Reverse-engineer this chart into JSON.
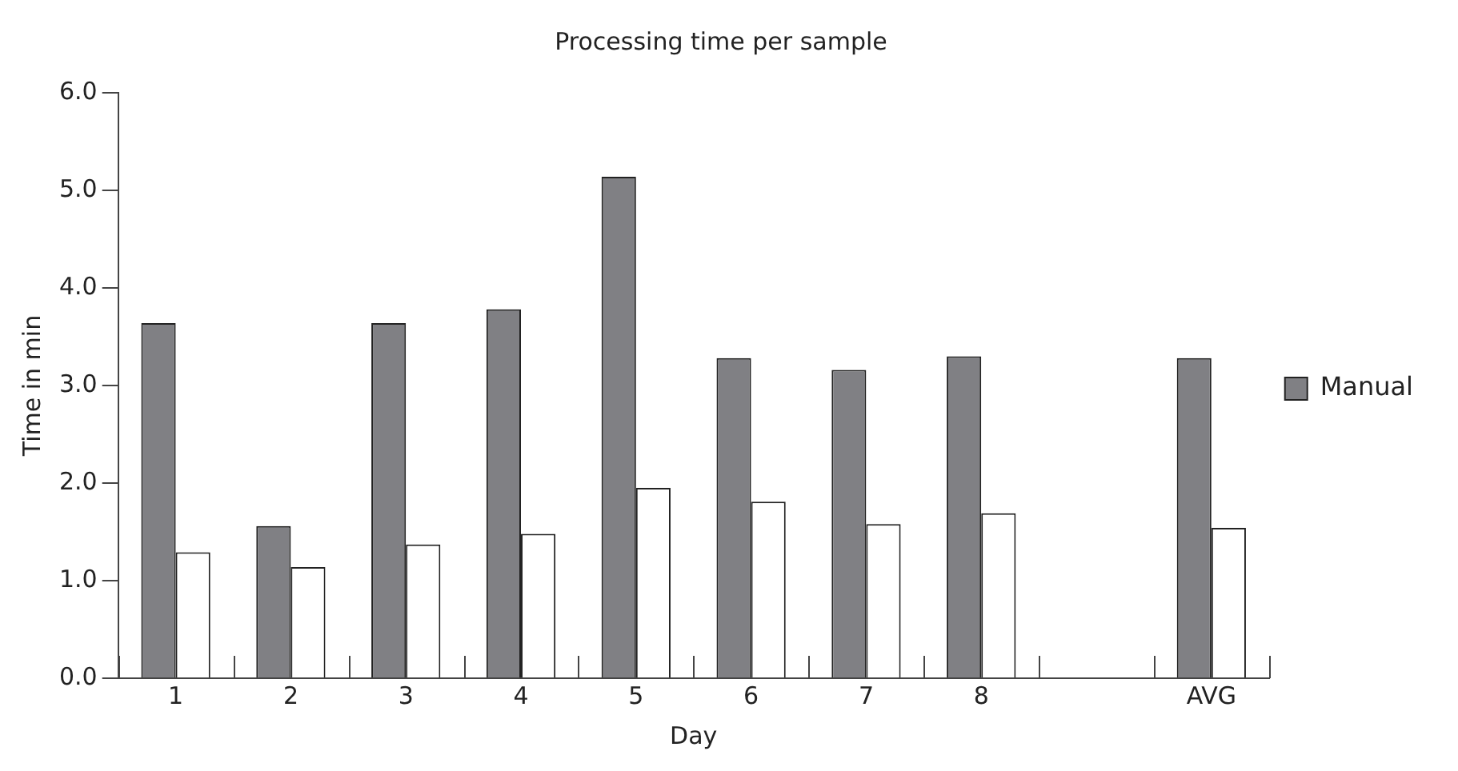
{
  "chart_data": {
    "type": "bar",
    "title": "Processing time per sample",
    "xlabel": "Day",
    "ylabel": "Time in min",
    "categories": [
      "1",
      "2",
      "3",
      "4",
      "5",
      "6",
      "7",
      "8",
      null,
      "AVG"
    ],
    "series": [
      {
        "name": "Manual",
        "color": "#808084",
        "values": [
          3.64,
          1.56,
          3.64,
          3.78,
          5.14,
          3.28,
          3.16,
          3.3,
          null,
          3.28
        ]
      },
      {
        "color": "#ffffff",
        "values": [
          1.29,
          1.14,
          1.37,
          1.48,
          1.95,
          1.81,
          1.58,
          1.69,
          null,
          1.54
        ]
      }
    ],
    "ylim": [
      0,
      6
    ],
    "yticks": [
      {
        "value": 0,
        "label": "0.0"
      },
      {
        "value": 1,
        "label": "1.0"
      },
      {
        "value": 2,
        "label": "2.0"
      },
      {
        "value": 3,
        "label": "3.0"
      },
      {
        "value": 4,
        "label": "4.0"
      },
      {
        "value": 5,
        "label": "5.0"
      },
      {
        "value": 6,
        "label": "6.0"
      }
    ],
    "grid": false,
    "legend": "right"
  }
}
